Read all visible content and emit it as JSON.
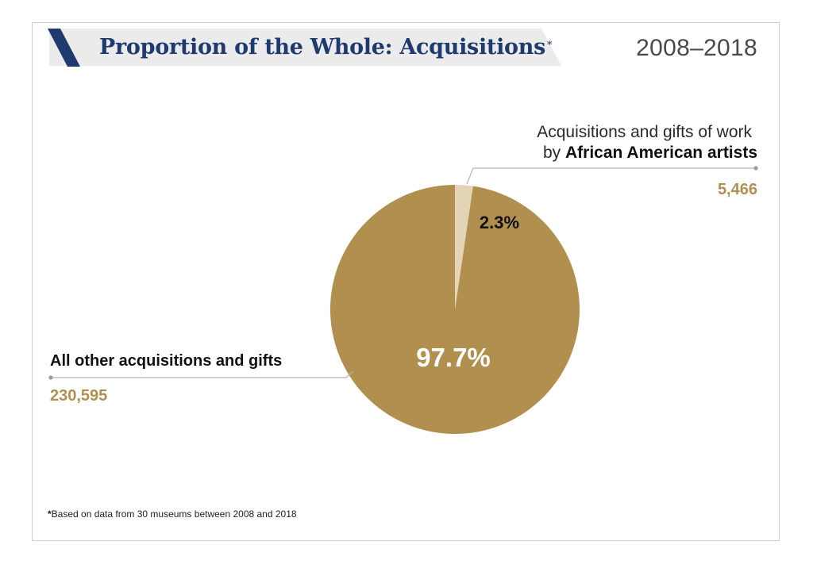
{
  "header": {
    "title": "Proportion of the Whole: Acquisitions",
    "title_mark": "*",
    "date_range": "2008–2018"
  },
  "colors": {
    "title": "#1f3a6e",
    "slash": "#1f3a6e",
    "main_slice": "#b1904f",
    "small_slice": "#e3d4b8",
    "value_text": "#b1904f"
  },
  "chart_data": {
    "type": "pie",
    "title": "Proportion of the Whole: Acquisitions",
    "subtitle": "2008–2018",
    "slices": [
      {
        "name": "Acquisitions and gifts of work by African American artists",
        "value": 5466,
        "percent": 2.3,
        "percent_label": "2.3%",
        "value_label": "5,466",
        "label_line1": "Acquisitions and gifts of work",
        "label_line2_prefix": "by ",
        "label_line2_bold": "African American artists"
      },
      {
        "name": "All other acquisitions and gifts",
        "value": 230595,
        "percent": 97.7,
        "percent_label": "97.7%",
        "value_label": "230,595",
        "label_line1": "All other acquisitions and gifts"
      }
    ]
  },
  "footnote": {
    "mark": "*",
    "text": "Based on data from 30 museums between 2008 and 2018"
  }
}
